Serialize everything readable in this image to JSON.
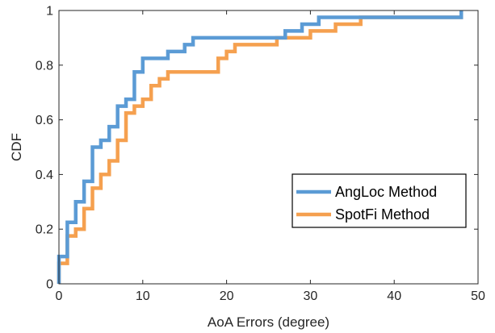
{
  "chart_data": {
    "type": "line",
    "title": "",
    "xlabel": "AoA Errors (degree)",
    "ylabel": "CDF",
    "xlim": [
      0,
      50
    ],
    "ylim": [
      0,
      1
    ],
    "x_ticks": [
      "0",
      "10",
      "20",
      "30",
      "40",
      "50"
    ],
    "y_ticks": [
      "0",
      "0.2",
      "0.4",
      "0.6",
      "0.8",
      "1"
    ],
    "grid": false,
    "legend_position": "lower-right",
    "series": [
      {
        "name": "AngLoc Method",
        "color": "#5b9bd5",
        "points": [
          [
            0,
            0
          ],
          [
            0,
            0.1
          ],
          [
            1,
            0.1
          ],
          [
            1,
            0.225
          ],
          [
            2,
            0.225
          ],
          [
            2,
            0.3
          ],
          [
            3,
            0.3
          ],
          [
            3,
            0.375
          ],
          [
            4,
            0.375
          ],
          [
            4,
            0.5
          ],
          [
            5,
            0.5
          ],
          [
            5,
            0.525
          ],
          [
            6,
            0.525
          ],
          [
            6,
            0.575
          ],
          [
            7,
            0.575
          ],
          [
            7,
            0.65
          ],
          [
            8,
            0.65
          ],
          [
            8,
            0.675
          ],
          [
            9,
            0.675
          ],
          [
            9,
            0.775
          ],
          [
            10,
            0.775
          ],
          [
            10,
            0.825
          ],
          [
            13,
            0.825
          ],
          [
            13,
            0.85
          ],
          [
            15,
            0.85
          ],
          [
            15,
            0.875
          ],
          [
            16,
            0.875
          ],
          [
            16,
            0.9
          ],
          [
            27,
            0.9
          ],
          [
            27,
            0.925
          ],
          [
            29,
            0.925
          ],
          [
            29,
            0.95
          ],
          [
            31,
            0.95
          ],
          [
            31,
            0.975
          ],
          [
            48,
            0.975
          ],
          [
            48,
            1
          ]
        ]
      },
      {
        "name": "SpotFi Method",
        "color": "#f5a04f",
        "points": [
          [
            0,
            0
          ],
          [
            0,
            0.075
          ],
          [
            1,
            0.075
          ],
          [
            1,
            0.175
          ],
          [
            2,
            0.175
          ],
          [
            2,
            0.2
          ],
          [
            3,
            0.2
          ],
          [
            3,
            0.275
          ],
          [
            4,
            0.275
          ],
          [
            4,
            0.35
          ],
          [
            5,
            0.35
          ],
          [
            5,
            0.4
          ],
          [
            6,
            0.4
          ],
          [
            6,
            0.45
          ],
          [
            7,
            0.45
          ],
          [
            7,
            0.525
          ],
          [
            8,
            0.525
          ],
          [
            8,
            0.625
          ],
          [
            9,
            0.625
          ],
          [
            9,
            0.65
          ],
          [
            10,
            0.65
          ],
          [
            10,
            0.675
          ],
          [
            11,
            0.675
          ],
          [
            11,
            0.725
          ],
          [
            12,
            0.725
          ],
          [
            12,
            0.75
          ],
          [
            13,
            0.75
          ],
          [
            13,
            0.775
          ],
          [
            19,
            0.775
          ],
          [
            19,
            0.825
          ],
          [
            20,
            0.825
          ],
          [
            20,
            0.85
          ],
          [
            21,
            0.85
          ],
          [
            21,
            0.875
          ],
          [
            26,
            0.875
          ],
          [
            26,
            0.9
          ],
          [
            30,
            0.9
          ],
          [
            30,
            0.925
          ],
          [
            33,
            0.925
          ],
          [
            33,
            0.95
          ],
          [
            36,
            0.95
          ],
          [
            36,
            0.975
          ],
          [
            48,
            0.975
          ],
          [
            48,
            1
          ]
        ]
      }
    ]
  }
}
